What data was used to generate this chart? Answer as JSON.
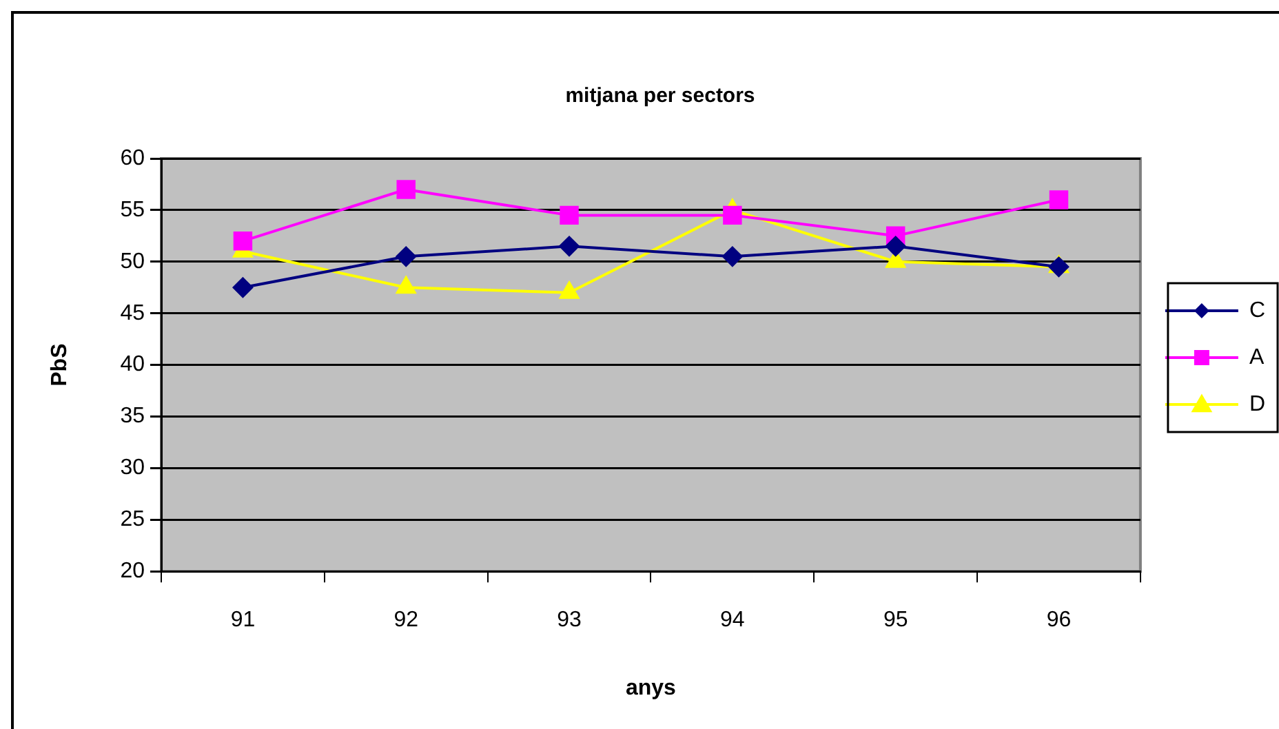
{
  "chart_data": {
    "type": "line",
    "title": "mitjana per sectors",
    "xlabel": "anys",
    "ylabel": "PbS",
    "categories": [
      "91",
      "92",
      "93",
      "94",
      "95",
      "96"
    ],
    "series": [
      {
        "name": "C",
        "color": "#000080",
        "marker": "diamond",
        "values": [
          47.5,
          50.5,
          51.5,
          50.5,
          51.5,
          49.5
        ]
      },
      {
        "name": "A",
        "color": "#ff00ff",
        "marker": "square",
        "values": [
          52,
          57,
          54.5,
          54.5,
          52.5,
          56
        ]
      },
      {
        "name": "D",
        "color": "#ffff00",
        "marker": "triangle",
        "values": [
          51,
          47.5,
          47,
          55,
          50,
          49.5
        ]
      }
    ],
    "ylim": [
      20,
      60
    ],
    "yticks": [
      20,
      25,
      30,
      35,
      40,
      45,
      50,
      55,
      60
    ],
    "grid": "y",
    "legend": "right"
  }
}
